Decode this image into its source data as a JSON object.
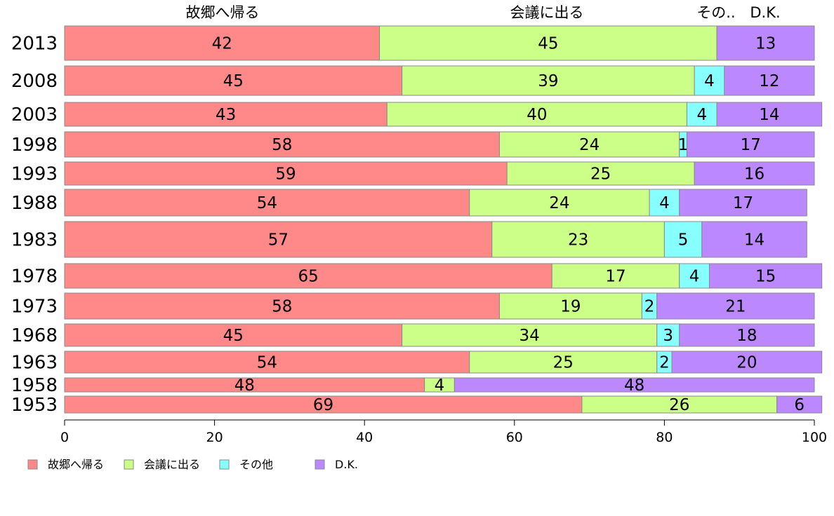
{
  "chart_data": {
    "type": "bar",
    "orientation": "horizontal",
    "stacked": true,
    "categories": [
      "2013",
      "2008",
      "2003",
      "1998",
      "1993",
      "1988",
      "1983",
      "1978",
      "1973",
      "1968",
      "1963",
      "1958",
      "1953"
    ],
    "series": [
      {
        "name": "故郷へ帰る",
        "color": "#ff8888",
        "values": [
          42,
          45,
          43,
          58,
          59,
          54,
          57,
          65,
          58,
          45,
          54,
          48,
          69
        ]
      },
      {
        "name": "会議に出る",
        "color": "#ccff88",
        "values": [
          45,
          39,
          40,
          24,
          25,
          24,
          23,
          17,
          19,
          34,
          25,
          4,
          26
        ]
      },
      {
        "name": "その他",
        "color": "#88ffff",
        "values": [
          0,
          4,
          4,
          1,
          0,
          4,
          5,
          4,
          2,
          3,
          2,
          0,
          0
        ]
      },
      {
        "name": "D.K.",
        "color": "#bb88ff",
        "values": [
          13,
          12,
          14,
          17,
          16,
          17,
          14,
          15,
          21,
          18,
          20,
          48,
          6
        ]
      }
    ],
    "top_labels": [
      "故郷へ帰る",
      "会議に出る",
      "その..",
      "D.K."
    ],
    "xlim": [
      0,
      100
    ],
    "xticks": [
      0,
      20,
      40,
      60,
      80,
      100
    ],
    "grid": false,
    "legend_position": "bottom-left"
  }
}
